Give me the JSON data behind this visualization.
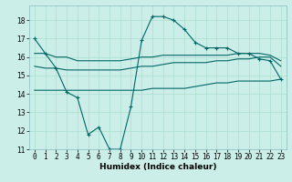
{
  "title": "",
  "xlabel": "Humidex (Indice chaleur)",
  "ylabel": "",
  "bg_color": "#cceee8",
  "grid_color": "#aaddcc",
  "line_color": "#006666",
  "xlim": [
    -0.5,
    23.5
  ],
  "ylim": [
    11,
    18.8
  ],
  "yticks": [
    11,
    12,
    13,
    14,
    15,
    16,
    17,
    18
  ],
  "xticks": [
    0,
    1,
    2,
    3,
    4,
    5,
    6,
    7,
    8,
    9,
    10,
    11,
    12,
    13,
    14,
    15,
    16,
    17,
    18,
    19,
    20,
    21,
    22,
    23
  ],
  "series": [
    {
      "x": [
        0,
        1,
        2,
        3,
        4,
        5,
        6,
        7,
        8,
        9,
        10,
        11,
        12,
        13,
        14,
        15,
        16,
        17,
        18,
        19,
        20,
        21,
        22,
        23
      ],
      "y": [
        17.0,
        16.2,
        15.4,
        14.1,
        13.8,
        11.8,
        12.2,
        11.0,
        11.0,
        13.3,
        16.9,
        18.2,
        18.2,
        18.0,
        17.5,
        16.8,
        16.5,
        16.5,
        16.5,
        16.2,
        16.2,
        15.9,
        15.8,
        14.8
      ],
      "marker": true
    },
    {
      "x": [
        0,
        1,
        2,
        3,
        4,
        5,
        6,
        7,
        8,
        9,
        10,
        11,
        12,
        13,
        14,
        15,
        16,
        17,
        18,
        19,
        20,
        21,
        22,
        23
      ],
      "y": [
        16.2,
        16.2,
        16.0,
        16.0,
        15.8,
        15.8,
        15.8,
        15.8,
        15.8,
        15.9,
        16.0,
        16.0,
        16.1,
        16.1,
        16.1,
        16.1,
        16.1,
        16.1,
        16.1,
        16.2,
        16.2,
        16.2,
        16.1,
        15.8
      ],
      "marker": false
    },
    {
      "x": [
        0,
        1,
        2,
        3,
        4,
        5,
        6,
        7,
        8,
        9,
        10,
        11,
        12,
        13,
        14,
        15,
        16,
        17,
        18,
        19,
        20,
        21,
        22,
        23
      ],
      "y": [
        15.5,
        15.4,
        15.4,
        15.3,
        15.3,
        15.3,
        15.3,
        15.3,
        15.3,
        15.4,
        15.5,
        15.5,
        15.6,
        15.7,
        15.7,
        15.7,
        15.7,
        15.8,
        15.8,
        15.9,
        15.9,
        16.0,
        16.0,
        15.5
      ],
      "marker": false
    },
    {
      "x": [
        0,
        1,
        2,
        3,
        4,
        5,
        6,
        7,
        8,
        9,
        10,
        11,
        12,
        13,
        14,
        15,
        16,
        17,
        18,
        19,
        20,
        21,
        22,
        23
      ],
      "y": [
        14.2,
        14.2,
        14.2,
        14.2,
        14.2,
        14.2,
        14.2,
        14.2,
        14.2,
        14.2,
        14.2,
        14.3,
        14.3,
        14.3,
        14.3,
        14.4,
        14.5,
        14.6,
        14.6,
        14.7,
        14.7,
        14.7,
        14.7,
        14.8
      ],
      "marker": false
    }
  ],
  "xlabel_fontsize": 6.5,
  "xlabel_fontweight": "bold",
  "tick_fontsize": 5.5,
  "linewidth": 0.8,
  "marker_size": 3.5,
  "marker_lw": 0.8
}
